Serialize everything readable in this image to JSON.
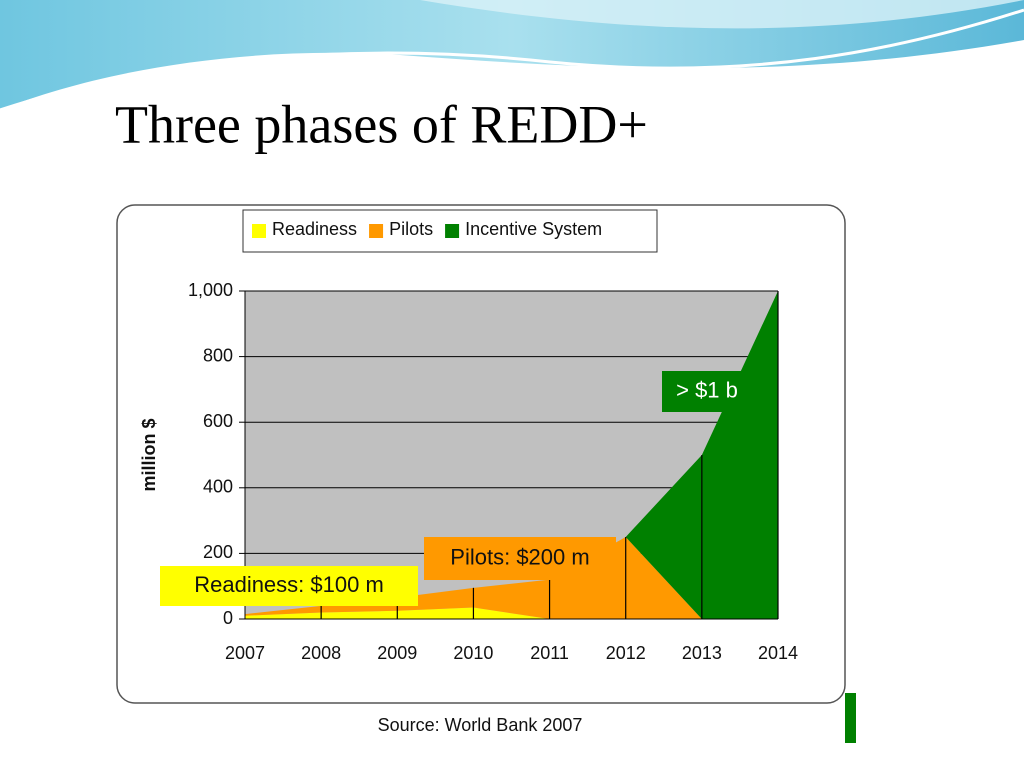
{
  "chart_data": {
    "type": "stacked_area",
    "title": "Three phases of REDD+",
    "y_label": "million $",
    "source": "Source: World Bank 2007",
    "categories": [
      "2007",
      "2008",
      "2009",
      "2010",
      "2011",
      "2012",
      "2013",
      "2014"
    ],
    "series": [
      {
        "name": "Readiness",
        "color": "#ffff00",
        "values": [
          10,
          20,
          25,
          35,
          0,
          0,
          0,
          0
        ]
      },
      {
        "name": "Pilots",
        "color": "#ff9900",
        "values": [
          5,
          20,
          40,
          60,
          120,
          250,
          0,
          0
        ]
      },
      {
        "name": "Incentive System",
        "color": "#008000",
        "values": [
          0,
          0,
          0,
          0,
          0,
          0,
          500,
          1000
        ]
      }
    ],
    "annotations": [
      "Readiness: $100 m",
      "Pilots: $200 m",
      "> $1 b"
    ],
    "ylim": [
      0,
      1000
    ],
    "yticks": [
      0,
      200,
      400,
      600,
      800,
      {
        "value": 1000,
        "label": "1,000"
      }
    ],
    "grid": true,
    "legend": "top"
  }
}
